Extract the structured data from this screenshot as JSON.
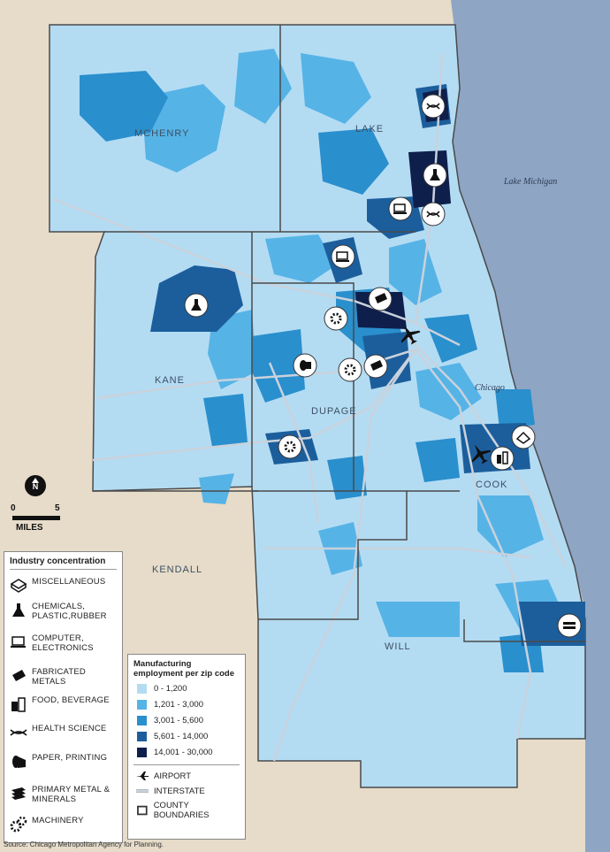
{
  "map": {
    "lake_label": "Lake Michigan",
    "city_label": "Chicago",
    "counties": [
      "MCHENRY",
      "LAKE",
      "KANE",
      "DUPAGE",
      "COOK",
      "KENDALL",
      "WILL"
    ],
    "colors": {
      "land_outside": "#e6dcc9",
      "lake": "#8ea5c4",
      "class_1": "#b3dcf3",
      "class_2": "#56b3e6",
      "class_3": "#2a8fcd",
      "class_4": "#1c5e9c",
      "class_5": "#0f1f4b",
      "interstate": "#c9d2dc",
      "county_boundary": "#4a4a4a"
    }
  },
  "north_arrow": {
    "label": "N"
  },
  "scale_bar": {
    "start": "0",
    "end": "5",
    "unit": "MILES"
  },
  "industry_legend": {
    "title": "Industry concentration",
    "items": [
      {
        "label": "MISCELLANEOUS",
        "icon": "miscellaneous-icon"
      },
      {
        "label": "CHEMICALS, PLASTIC,RUBBER",
        "icon": "chemicals-icon"
      },
      {
        "label": "COMPUTER, ELECTRONICS",
        "icon": "computer-icon"
      },
      {
        "label": "FABRICATED METALS",
        "icon": "fabricated-metals-icon"
      },
      {
        "label": "FOOD, BEVERAGE",
        "icon": "food-beverage-icon"
      },
      {
        "label": "HEALTH SCIENCE",
        "icon": "health-science-icon"
      },
      {
        "label": "PAPER, PRINTING",
        "icon": "paper-printing-icon"
      },
      {
        "label": "PRIMARY METAL & MINERALS",
        "icon": "primary-metal-icon"
      },
      {
        "label": "MACHINERY",
        "icon": "machinery-icon"
      }
    ]
  },
  "employment_legend": {
    "title": "Manufacturing employment per zip code",
    "classes": [
      {
        "label": "0 - 1,200",
        "color": "#b3dcf3"
      },
      {
        "label": "1,201 - 3,000",
        "color": "#56b3e6"
      },
      {
        "label": "3,001 - 5,600",
        "color": "#2a8fcd"
      },
      {
        "label": "5,601 - 14,000",
        "color": "#1c5e9c"
      },
      {
        "label": "14,001 - 30,000",
        "color": "#0f1f4b"
      }
    ],
    "symbols": [
      {
        "label": "AIRPORT",
        "icon": "airport-icon"
      },
      {
        "label": "INTERSTATE",
        "icon": "interstate-line"
      },
      {
        "label": "COUNTY BOUNDARIES",
        "icon": "county-boundary-box"
      }
    ]
  },
  "source": "Source: Chicago Metropolitan Agency for Planning."
}
